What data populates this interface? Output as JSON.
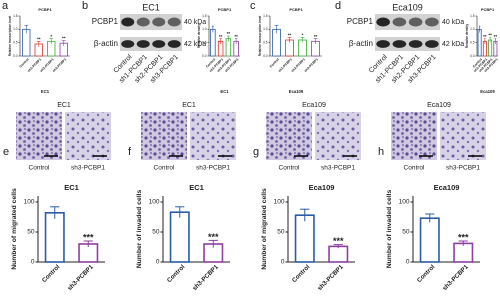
{
  "panels": [
    {
      "letter": "a",
      "chart": {
        "type": "bar",
        "title": "PCBP1",
        "ylabel": "Relative transcription level",
        "xlabel": "EC1",
        "categories": [
          "Control",
          "sh1-PCBP1",
          "sh2-PCBP1",
          "sh3-PCBP1"
        ],
        "values": [
          1.0,
          0.45,
          0.55,
          0.48
        ],
        "errors": [
          0.15,
          0.1,
          0.1,
          0.1
        ],
        "colors": [
          "#2a5caa",
          "#e0302b",
          "#3aaa35",
          "#8e3fa0"
        ],
        "annotations": [
          "**",
          "*",
          "**"
        ],
        "ylim": [
          0,
          1.5
        ],
        "yticks": [
          {
            "value": 0,
            "label": "0.0"
          },
          0.5,
          {
            "value": 1,
            "label": "1.0"
          },
          1.5
        ]
      }
    },
    {
      "letter": "b",
      "blot": {
        "title": "EC1",
        "bands": [
          {
            "name": "PCBP1",
            "size": "40 kDa"
          },
          {
            "name": "β-actin",
            "size": "42 kDa"
          }
        ],
        "lanes": [
          "Control",
          "sh1-PCBP1",
          "sh2-PCBP1",
          "sh3-PCBP1"
        ]
      },
      "chart": {
        "type": "bar",
        "title": "PCBP1",
        "ylabel": "Relative density",
        "xlabel": "EC1",
        "categories": [
          "Control",
          "sh1-PCBP1",
          "sh2-PCBP1",
          "sh3-PCBP1"
        ],
        "values": [
          1.0,
          0.55,
          0.65,
          0.55
        ],
        "errors": [
          0.12,
          0.1,
          0.1,
          0.1
        ],
        "colors": [
          "#2a5caa",
          "#e0302b",
          "#3aaa35",
          "#8e3fa0"
        ],
        "annotations": [
          "**",
          "**",
          "**"
        ],
        "ylim": [
          0,
          1.5
        ],
        "yticks": [
          {
            "value": 0,
            "label": "0.0"
          },
          0.5,
          {
            "value": 1,
            "label": "1.0"
          },
          1.5
        ]
      }
    },
    {
      "letter": "c",
      "chart": {
        "type": "bar",
        "title": "PCBP1",
        "ylabel": "Relative transcription level",
        "xlabel": "Eca109",
        "categories": [
          "Control",
          "sh1-PCBP1",
          "sh2-PCBP1",
          "sh3-PCBP1"
        ],
        "values": [
          1.0,
          0.6,
          0.6,
          0.55
        ],
        "errors": [
          0.15,
          0.1,
          0.1,
          0.1
        ],
        "colors": [
          "#2a5caa",
          "#e0302b",
          "#3aaa35",
          "#8e3fa0"
        ],
        "annotations": [
          "**",
          "*",
          "**"
        ],
        "ylim": [
          0,
          1.5
        ],
        "yticks": [
          {
            "value": 0,
            "label": "0.0"
          },
          0.5,
          {
            "value": 1,
            "label": "1.0"
          },
          1.5
        ]
      }
    },
    {
      "letter": "d",
      "blot": {
        "title": "Eca109",
        "bands": [
          {
            "name": "PCBP1",
            "size": "40 kDa"
          },
          {
            "name": "β-actin",
            "size": "42 kDa"
          }
        ],
        "lanes": [
          "Control",
          "sh1-PCBP1",
          "sh2-PCBP1",
          "sh3-PCBP1"
        ]
      },
      "chart": {
        "type": "bar",
        "title": "PCBP1",
        "ylabel": "Relative density",
        "xlabel": "Eca109",
        "categories": [
          "Control",
          "sh1-PCBP1",
          "sh2-PCBP1",
          "sh3-PCBP1"
        ],
        "values": [
          1.0,
          0.55,
          0.6,
          0.55
        ],
        "errors": [
          0.12,
          0.1,
          0.1,
          0.1
        ],
        "colors": [
          "#2a5caa",
          "#e0302b",
          "#3aaa35",
          "#8e3fa0"
        ],
        "annotations": [
          "**",
          "**",
          "**"
        ],
        "ylim": [
          0,
          1.5
        ],
        "yticks": [
          {
            "value": 0,
            "label": "0.0"
          },
          0.5,
          {
            "value": 1,
            "label": "1.0"
          },
          1.5
        ]
      }
    },
    {
      "letter": "e",
      "micrograph": {
        "title": "EC1",
        "labels": [
          "Control",
          "sh3-PCBP1"
        ]
      },
      "chart": {
        "type": "bar",
        "title": "EC1",
        "ylabel": "Number of migrated cells",
        "categories": [
          "Control",
          "sh3-PCBP1"
        ],
        "values": [
          82,
          30
        ],
        "errors": [
          10,
          5
        ],
        "colors": [
          "#2a5caa",
          "#8e3fa0"
        ],
        "annotations": [
          "***"
        ],
        "ylim": [
          0,
          110
        ],
        "yticks": [
          0,
          50,
          100
        ]
      }
    },
    {
      "letter": "f",
      "micrograph": {
        "title": "EC1",
        "labels": [
          "Control",
          "sh3-PCBP1"
        ]
      },
      "chart": {
        "type": "bar",
        "title": "EC1",
        "ylabel": "Number of invaded cells",
        "categories": [
          "Control",
          "sh3-PCBP1"
        ],
        "values": [
          83,
          30
        ],
        "errors": [
          9,
          6
        ],
        "colors": [
          "#2a5caa",
          "#8e3fa0"
        ],
        "annotations": [
          "***"
        ],
        "ylim": [
          0,
          110
        ],
        "yticks": [
          0,
          50,
          100
        ]
      }
    },
    {
      "letter": "g",
      "micrograph": {
        "title": "Eca109",
        "labels": [
          "Control",
          "sh3-PCBP1"
        ]
      },
      "chart": {
        "type": "bar",
        "title": "Eca109",
        "ylabel": "Number of migrated cells",
        "categories": [
          "Control",
          "sh3-PCBP1"
        ],
        "values": [
          78,
          26
        ],
        "errors": [
          10,
          3
        ],
        "colors": [
          "#2a5caa",
          "#8e3fa0"
        ],
        "annotations": [
          "***"
        ],
        "ylim": [
          0,
          110
        ],
        "yticks": [
          0,
          50,
          100
        ]
      }
    },
    {
      "letter": "h",
      "micrograph": {
        "title": "Eca109",
        "labels": [
          "Control",
          "sh3-PCBP1"
        ]
      },
      "chart": {
        "type": "bar",
        "title": "Eca109",
        "ylabel": "Number of invaded cells",
        "categories": [
          "Control",
          "sh3-PCBP1"
        ],
        "values": [
          73,
          31
        ],
        "errors": [
          7,
          4
        ],
        "colors": [
          "#2a5caa",
          "#8e3fa0"
        ],
        "annotations": [
          "***"
        ],
        "ylim": [
          0,
          110
        ],
        "yticks": [
          0,
          50,
          100
        ]
      }
    }
  ]
}
